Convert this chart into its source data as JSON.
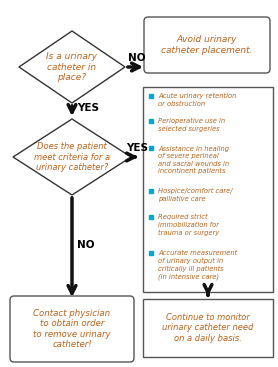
{
  "diamond1_text": "Is a urinary\ncatheter in\nplace?",
  "diamond2_text": "Does the patient\nmeet criteria for a\nurinary catheter?",
  "box_no1_text": "Avoid urinary\ncatheter placement.",
  "box_no2_text": "Contact physician\nto obtain order\nto remove urinary\ncatheter!",
  "box_final_text": "Continue to monitor\nurinary catheter need\non a daily basis.",
  "bullet_items": [
    "Acute urinary retention\nor obstruction",
    "Perioperative use in\nselected surgeries",
    "Assistance in healing\nof severe perineal\nand sacral wounds in\nincontinent patients",
    "Hospice/comfort care/\npalliative care",
    "Required strict\nimmobilization for\ntrauma or surgery",
    "Accurate measurement\nof urinary output in\ncritically ill patients\n(in intensive care)"
  ],
  "text_color": "#b5651d",
  "bullet_color": "#00aacc",
  "arrow_color": "#111111",
  "label_yes": "YES",
  "label_no": "NO"
}
